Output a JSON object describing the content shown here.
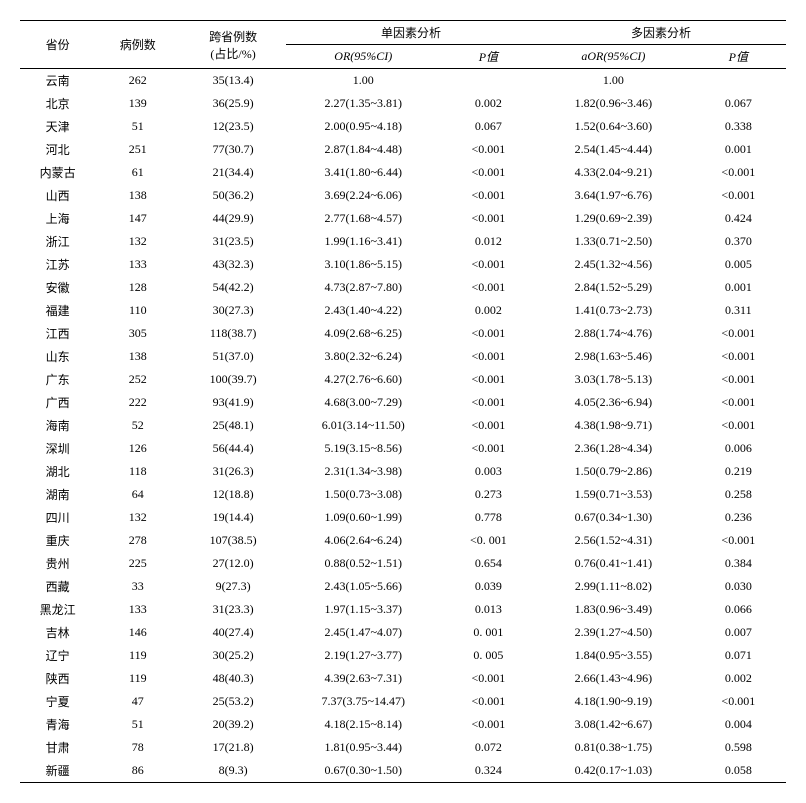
{
  "headers": {
    "province": "省份",
    "cases": "病例数",
    "crossing": "跨省例数",
    "crossing_sub": "(占比/%)",
    "univariate": "单因素分析",
    "multivariate": "多因素分析",
    "or": "OR(95%CI)",
    "aor": "aOR(95%CI)",
    "p": "P值"
  },
  "rows": [
    {
      "prov": "云南",
      "cases": "262",
      "cross": "35(13.4)",
      "or": "1.00",
      "p1": "",
      "aor": "1.00",
      "p2": ""
    },
    {
      "prov": "北京",
      "cases": "139",
      "cross": "36(25.9)",
      "or": "2.27(1.35~3.81)",
      "p1": "0.002",
      "aor": "1.82(0.96~3.46)",
      "p2": "0.067"
    },
    {
      "prov": "天津",
      "cases": "51",
      "cross": "12(23.5)",
      "or": "2.00(0.95~4.18)",
      "p1": "0.067",
      "aor": "1.52(0.64~3.60)",
      "p2": "0.338"
    },
    {
      "prov": "河北",
      "cases": "251",
      "cross": "77(30.7)",
      "or": "2.87(1.84~4.48)",
      "p1": "<0.001",
      "aor": "2.54(1.45~4.44)",
      "p2": "0.001"
    },
    {
      "prov": "内蒙古",
      "cases": "61",
      "cross": "21(34.4)",
      "or": "3.41(1.80~6.44)",
      "p1": "<0.001",
      "aor": "4.33(2.04~9.21)",
      "p2": "<0.001"
    },
    {
      "prov": "山西",
      "cases": "138",
      "cross": "50(36.2)",
      "or": "3.69(2.24~6.06)",
      "p1": "<0.001",
      "aor": "3.64(1.97~6.76)",
      "p2": "<0.001"
    },
    {
      "prov": "上海",
      "cases": "147",
      "cross": "44(29.9)",
      "or": "2.77(1.68~4.57)",
      "p1": "<0.001",
      "aor": "1.29(0.69~2.39)",
      "p2": "0.424"
    },
    {
      "prov": "浙江",
      "cases": "132",
      "cross": "31(23.5)",
      "or": "1.99(1.16~3.41)",
      "p1": "0.012",
      "aor": "1.33(0.71~2.50)",
      "p2": "0.370"
    },
    {
      "prov": "江苏",
      "cases": "133",
      "cross": "43(32.3)",
      "or": "3.10(1.86~5.15)",
      "p1": "<0.001",
      "aor": "2.45(1.32~4.56)",
      "p2": "0.005"
    },
    {
      "prov": "安徽",
      "cases": "128",
      "cross": "54(42.2)",
      "or": "4.73(2.87~7.80)",
      "p1": "<0.001",
      "aor": "2.84(1.52~5.29)",
      "p2": "0.001"
    },
    {
      "prov": "福建",
      "cases": "110",
      "cross": "30(27.3)",
      "or": "2.43(1.40~4.22)",
      "p1": "0.002",
      "aor": "1.41(0.73~2.73)",
      "p2": "0.311"
    },
    {
      "prov": "江西",
      "cases": "305",
      "cross": "118(38.7)",
      "or": "4.09(2.68~6.25)",
      "p1": "<0.001",
      "aor": "2.88(1.74~4.76)",
      "p2": "<0.001"
    },
    {
      "prov": "山东",
      "cases": "138",
      "cross": "51(37.0)",
      "or": "3.80(2.32~6.24)",
      "p1": "<0.001",
      "aor": "2.98(1.63~5.46)",
      "p2": "<0.001"
    },
    {
      "prov": "广东",
      "cases": "252",
      "cross": "100(39.7)",
      "or": "4.27(2.76~6.60)",
      "p1": "<0.001",
      "aor": "3.03(1.78~5.13)",
      "p2": "<0.001"
    },
    {
      "prov": "广西",
      "cases": "222",
      "cross": "93(41.9)",
      "or": "4.68(3.00~7.29)",
      "p1": "<0.001",
      "aor": "4.05(2.36~6.94)",
      "p2": "<0.001"
    },
    {
      "prov": "海南",
      "cases": "52",
      "cross": "25(48.1)",
      "or": "6.01(3.14~11.50)",
      "p1": "<0.001",
      "aor": "4.38(1.98~9.71)",
      "p2": "<0.001"
    },
    {
      "prov": "深圳",
      "cases": "126",
      "cross": "56(44.4)",
      "or": "5.19(3.15~8.56)",
      "p1": "<0.001",
      "aor": "2.36(1.28~4.34)",
      "p2": "0.006"
    },
    {
      "prov": "湖北",
      "cases": "118",
      "cross": "31(26.3)",
      "or": "2.31(1.34~3.98)",
      "p1": "0.003",
      "aor": "1.50(0.79~2.86)",
      "p2": "0.219"
    },
    {
      "prov": "湖南",
      "cases": "64",
      "cross": "12(18.8)",
      "or": "1.50(0.73~3.08)",
      "p1": "0.273",
      "aor": "1.59(0.71~3.53)",
      "p2": "0.258"
    },
    {
      "prov": "四川",
      "cases": "132",
      "cross": "19(14.4)",
      "or": "1.09(0.60~1.99)",
      "p1": "0.778",
      "aor": "0.67(0.34~1.30)",
      "p2": "0.236"
    },
    {
      "prov": "重庆",
      "cases": "278",
      "cross": "107(38.5)",
      "or": "4.06(2.64~6.24)",
      "p1": "<0. 001",
      "aor": "2.56(1.52~4.31)",
      "p2": "<0.001"
    },
    {
      "prov": "贵州",
      "cases": "225",
      "cross": "27(12.0)",
      "or": "0.88(0.52~1.51)",
      "p1": "0.654",
      "aor": "0.76(0.41~1.41)",
      "p2": "0.384"
    },
    {
      "prov": "西藏",
      "cases": "33",
      "cross": "9(27.3)",
      "or": "2.43(1.05~5.66)",
      "p1": "0.039",
      "aor": "2.99(1.11~8.02)",
      "p2": "0.030"
    },
    {
      "prov": "黑龙江",
      "cases": "133",
      "cross": "31(23.3)",
      "or": "1.97(1.15~3.37)",
      "p1": "0.013",
      "aor": "1.83(0.96~3.49)",
      "p2": "0.066"
    },
    {
      "prov": "吉林",
      "cases": "146",
      "cross": "40(27.4)",
      "or": "2.45(1.47~4.07)",
      "p1": "0. 001",
      "aor": "2.39(1.27~4.50)",
      "p2": "0.007"
    },
    {
      "prov": "辽宁",
      "cases": "119",
      "cross": "30(25.2)",
      "or": "2.19(1.27~3.77)",
      "p1": "0. 005",
      "aor": "1.84(0.95~3.55)",
      "p2": "0.071"
    },
    {
      "prov": "陕西",
      "cases": "119",
      "cross": "48(40.3)",
      "or": "4.39(2.63~7.31)",
      "p1": "<0.001",
      "aor": "2.66(1.43~4.96)",
      "p2": "0.002"
    },
    {
      "prov": "宁夏",
      "cases": "47",
      "cross": "25(53.2)",
      "or": "7.37(3.75~14.47)",
      "p1": "<0.001",
      "aor": "4.18(1.90~9.19)",
      "p2": "<0.001"
    },
    {
      "prov": "青海",
      "cases": "51",
      "cross": "20(39.2)",
      "or": "4.18(2.15~8.14)",
      "p1": "<0.001",
      "aor": "3.08(1.42~6.67)",
      "p2": "0.004"
    },
    {
      "prov": "甘肃",
      "cases": "78",
      "cross": "17(21.8)",
      "or": "1.81(0.95~3.44)",
      "p1": "0.072",
      "aor": "0.81(0.38~1.75)",
      "p2": "0.598"
    },
    {
      "prov": "新疆",
      "cases": "86",
      "cross": "8(9.3)",
      "or": "0.67(0.30~1.50)",
      "p1": "0.324",
      "aor": "0.42(0.17~1.03)",
      "p2": "0.058"
    }
  ]
}
